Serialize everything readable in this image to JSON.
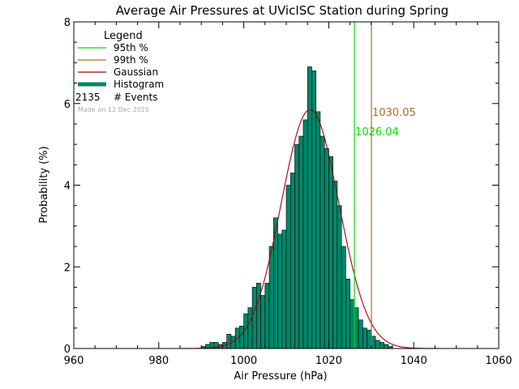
{
  "chart_data": {
    "type": "bar",
    "title": "Average Air Pressures at UVicISC Station during Spring",
    "xlabel": "Air Pressure (hPa)",
    "ylabel": "Probability (%)",
    "xlim": [
      960,
      1060
    ],
    "ylim": [
      0,
      8
    ],
    "x_ticks": [
      "960",
      "980",
      "1000",
      "1020",
      "1040",
      "1060"
    ],
    "y_ticks": [
      "0",
      "2",
      "4",
      "6",
      "8"
    ],
    "bin_width": 1,
    "bin_starts": [
      990,
      991,
      992,
      993,
      994,
      995,
      996,
      997,
      998,
      999,
      1000,
      1001,
      1002,
      1003,
      1004,
      1005,
      1006,
      1007,
      1008,
      1009,
      1010,
      1011,
      1012,
      1013,
      1014,
      1015,
      1016,
      1017,
      1018,
      1019,
      1020,
      1021,
      1022,
      1023,
      1024,
      1025,
      1026,
      1027,
      1028,
      1029,
      1030,
      1031,
      1032,
      1033,
      1034
    ],
    "values": [
      0.05,
      0.1,
      0.15,
      0.15,
      0.1,
      0.15,
      0.35,
      0.3,
      0.5,
      0.55,
      0.85,
      1.0,
      1.5,
      1.6,
      1.3,
      1.6,
      2.5,
      3.2,
      2.8,
      2.9,
      4.0,
      4.3,
      5.0,
      5.2,
      5.6,
      6.9,
      6.8,
      5.8,
      5.2,
      4.9,
      4.7,
      4.1,
      3.5,
      2.5,
      1.7,
      1.2,
      1.0,
      0.7,
      0.5,
      0.45,
      0.3,
      0.2,
      0.15,
      0.1,
      0.05
    ],
    "gaussian": {
      "mean": 1015.6,
      "sd": 6.8,
      "peak": 5.85
    },
    "percentile_lines": [
      {
        "label": "95th %",
        "value": 1026.04,
        "text": "1026.04",
        "color": "#00dd00"
      },
      {
        "label": "99th %",
        "value": 1030.05,
        "text": "1030.05",
        "color": "#b06a2c"
      }
    ],
    "legend": {
      "title": "Legend",
      "items": [
        {
          "label": "95th %",
          "color": "#00dd00",
          "kind": "line"
        },
        {
          "label": "99th %",
          "color": "#b06a2c",
          "kind": "line"
        },
        {
          "label": "Gaussian",
          "color": "#aa0000",
          "kind": "line"
        },
        {
          "label": "Histogram",
          "color": "#00876a",
          "kind": "thick"
        }
      ],
      "events_count": "2135",
      "events_label": "# Events",
      "made_on": "Made on 12 Dec 2025",
      "placement": "top-left"
    },
    "colors": {
      "bar_fill": "#00876a",
      "bar_edge": "#000000",
      "gaussian": "#aa0000"
    }
  }
}
